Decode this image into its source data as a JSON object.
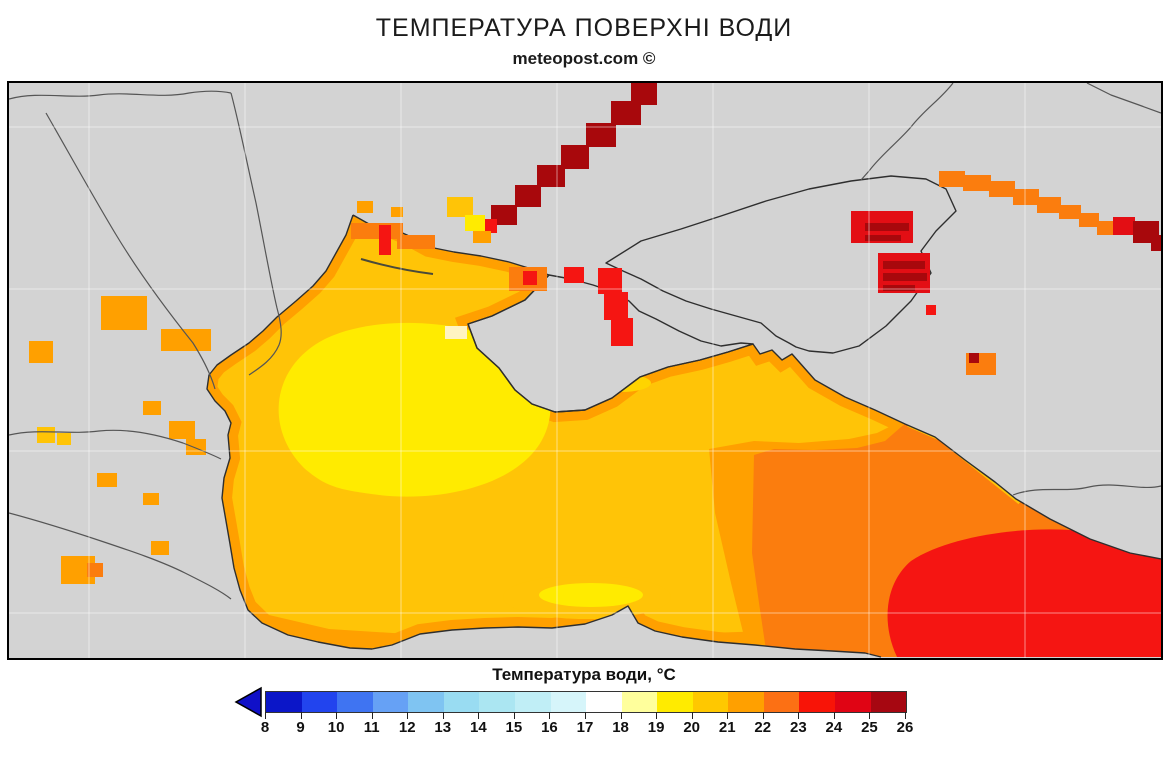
{
  "header": {
    "title": "ТЕМПЕРАТУРА ПОВЕРХНІ ВОДИ",
    "credit": "meteopost.com ©"
  },
  "legend": {
    "label": "Температура води, °С",
    "ticks": [
      "8",
      "9",
      "10",
      "11",
      "12",
      "13",
      "14",
      "15",
      "16",
      "17",
      "18",
      "19",
      "20",
      "21",
      "22",
      "23",
      "24",
      "25",
      "26"
    ],
    "segment_colors": [
      "#0B16C8",
      "#2244EE",
      "#3F74F2",
      "#66A1F5",
      "#7FC4F2",
      "#99DCF2",
      "#ABE6F2",
      "#C0EEF6",
      "#D6F5FA",
      "#FFFFFF",
      "#FFFF9C",
      "#FFEB00",
      "#FFC800",
      "#FFA000",
      "#FC7014",
      "#F81407",
      "#E00414",
      "#A60711"
    ],
    "arrow_color": "#1010C8"
  },
  "palette": {
    "land": "#D3D3D3",
    "grid": "#FFFFFF",
    "sea18_pale": "#FFF4C2",
    "sea19_yellow": "#FFEB00",
    "sea20_gold": "#FFC407",
    "gold_spot": "#FFD400",
    "sea21_orange": "#FFA000",
    "sea22_deep_orange": "#FB7D0E",
    "sea23_red": "#F51512",
    "sea24_red2": "#E30E14",
    "sea25_dark_red": "#A8080C"
  },
  "map": {
    "regions": [
      {
        "name": "western-black-sea-gyre",
        "temp_c": "19–20"
      },
      {
        "name": "northwest-shelf-odesa",
        "temp_c": "20–21"
      },
      {
        "name": "central-black-sea",
        "temp_c": "20–21"
      },
      {
        "name": "south-coast-turkey",
        "temp_c": "21–22"
      },
      {
        "name": "eastern-black-sea",
        "temp_c": "22–23"
      },
      {
        "name": "southeast-black-sea-georgia",
        "temp_c": "23–24"
      },
      {
        "name": "sea-of-azov",
        "temp_c": "22–23"
      },
      {
        "name": "azov-taganrog-hotspots",
        "temp_c": "24–26"
      },
      {
        "name": "dnipro-river-kakhovka",
        "temp_c": "25–26"
      },
      {
        "name": "don-river-arc",
        "temp_c": "22–26"
      }
    ]
  }
}
